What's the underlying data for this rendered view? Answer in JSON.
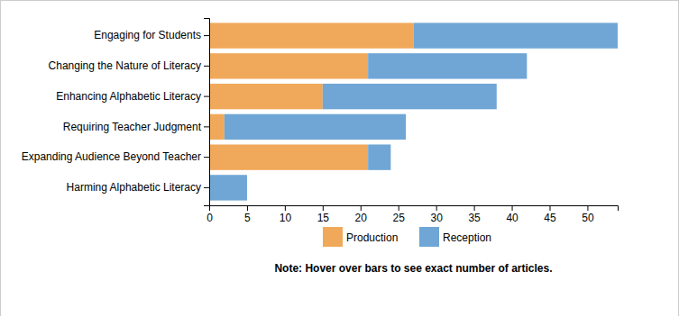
{
  "chart_data": {
    "type": "bar",
    "orientation": "horizontal",
    "stacked": true,
    "categories": [
      "Engaging for Students",
      "Changing the Nature of Literacy",
      "Enhancing Alphabetic Literacy",
      "Requiring Teacher Judgment",
      "Expanding Audience Beyond Teacher",
      "Harming Alphabetic Literacy"
    ],
    "series": [
      {
        "name": "Production",
        "color": "#f0a95a",
        "values": [
          27,
          21,
          15,
          2,
          21,
          0
        ]
      },
      {
        "name": "Reception",
        "color": "#6fa6d6",
        "values": [
          27,
          21,
          23,
          24,
          3,
          5
        ]
      }
    ],
    "xlim": [
      0,
      54
    ],
    "xticks": [
      0,
      5,
      10,
      15,
      20,
      25,
      30,
      35,
      40,
      45,
      50
    ],
    "legend": "bottom",
    "annotations": [
      "Note: Hover over bars to see exact number of articles."
    ]
  }
}
